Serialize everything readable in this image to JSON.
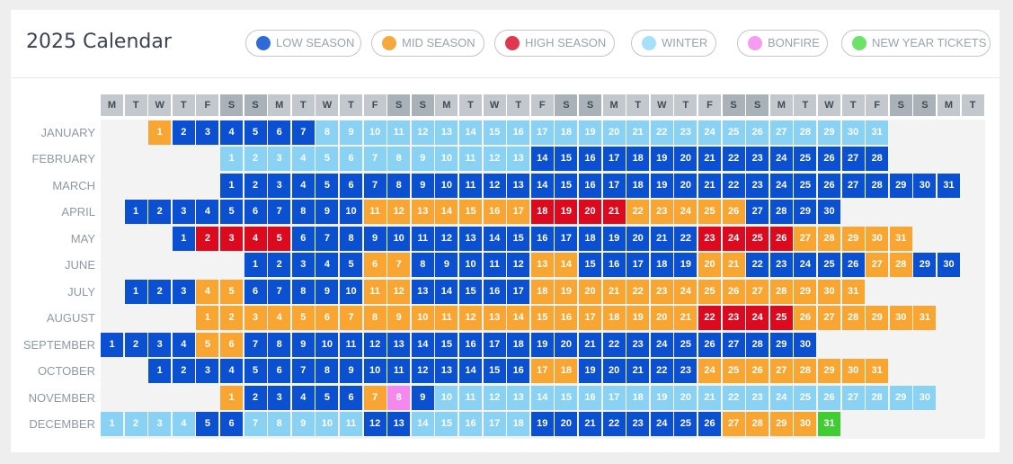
{
  "title": "2025 Calendar",
  "legend": [
    {
      "label": "LOW SEASON",
      "color": "#2e6bd8"
    },
    {
      "label": "MID SEASON",
      "color": "#f5a93d"
    },
    {
      "label": "HIGH SEASON",
      "color": "#e0394f"
    },
    {
      "label": "WINTER",
      "color": "#a8e0fb"
    },
    {
      "label": "BONFIRE",
      "color": "#f59cf0"
    },
    {
      "label": "NEW YEAR TICKETS",
      "color": "#6ce266"
    }
  ],
  "season_colors": {
    "low": {
      "bg": "#0b50d1",
      "fg": "#ffffff"
    },
    "mid": {
      "bg": "#f9a531",
      "fg": "#ffffff"
    },
    "high": {
      "bg": "#dc0a1f",
      "fg": "#ffffff"
    },
    "winter": {
      "bg": "#8ad2f4",
      "fg": "#ffffff"
    },
    "bonfire": {
      "bg": "#f488ec",
      "fg": "#ffffff"
    },
    "newyear": {
      "bg": "#42cc34",
      "fg": "#ffffff"
    }
  },
  "weekdays": [
    "M",
    "T",
    "W",
    "T",
    "F",
    "S",
    "S",
    "M",
    "T",
    "W",
    "T",
    "F",
    "S",
    "S",
    "M",
    "T",
    "W",
    "T",
    "F",
    "S",
    "S",
    "M",
    "T",
    "W",
    "T",
    "F",
    "S",
    "S",
    "M",
    "T",
    "W",
    "T",
    "F",
    "S",
    "S",
    "M",
    "T"
  ],
  "months": [
    {
      "name": "JANUARY",
      "offset": 2,
      "days": 31,
      "seasons": [
        [
          1,
          1,
          "mid"
        ],
        [
          2,
          7,
          "low"
        ],
        [
          8,
          31,
          "winter"
        ]
      ]
    },
    {
      "name": "FEBRUARY",
      "offset": 5,
      "days": 28,
      "seasons": [
        [
          1,
          13,
          "winter"
        ],
        [
          14,
          28,
          "low"
        ]
      ]
    },
    {
      "name": "MARCH",
      "offset": 5,
      "days": 31,
      "seasons": [
        [
          1,
          31,
          "low"
        ]
      ]
    },
    {
      "name": "APRIL",
      "offset": 1,
      "days": 30,
      "seasons": [
        [
          1,
          10,
          "low"
        ],
        [
          11,
          17,
          "mid"
        ],
        [
          18,
          21,
          "high"
        ],
        [
          22,
          26,
          "mid"
        ],
        [
          27,
          30,
          "low"
        ]
      ]
    },
    {
      "name": "MAY",
      "offset": 3,
      "days": 31,
      "seasons": [
        [
          1,
          1,
          "low"
        ],
        [
          2,
          5,
          "high"
        ],
        [
          6,
          22,
          "low"
        ],
        [
          23,
          26,
          "high"
        ],
        [
          27,
          31,
          "mid"
        ]
      ]
    },
    {
      "name": "JUNE",
      "offset": 6,
      "days": 30,
      "seasons": [
        [
          1,
          5,
          "low"
        ],
        [
          6,
          7,
          "mid"
        ],
        [
          8,
          12,
          "low"
        ],
        [
          13,
          14,
          "mid"
        ],
        [
          15,
          19,
          "low"
        ],
        [
          20,
          21,
          "mid"
        ],
        [
          22,
          26,
          "low"
        ],
        [
          27,
          28,
          "mid"
        ],
        [
          29,
          30,
          "low"
        ]
      ]
    },
    {
      "name": "JULY",
      "offset": 1,
      "days": 31,
      "seasons": [
        [
          1,
          3,
          "low"
        ],
        [
          4,
          5,
          "mid"
        ],
        [
          6,
          10,
          "low"
        ],
        [
          11,
          12,
          "mid"
        ],
        [
          13,
          17,
          "low"
        ],
        [
          18,
          31,
          "mid"
        ]
      ]
    },
    {
      "name": "AUGUST",
      "offset": 4,
      "days": 31,
      "seasons": [
        [
          1,
          21,
          "mid"
        ],
        [
          22,
          25,
          "high"
        ],
        [
          26,
          31,
          "mid"
        ]
      ]
    },
    {
      "name": "SEPTEMBER",
      "offset": 0,
      "days": 30,
      "seasons": [
        [
          1,
          4,
          "low"
        ],
        [
          5,
          6,
          "mid"
        ],
        [
          7,
          30,
          "low"
        ]
      ]
    },
    {
      "name": "OCTOBER",
      "offset": 2,
      "days": 31,
      "seasons": [
        [
          1,
          16,
          "low"
        ],
        [
          17,
          18,
          "mid"
        ],
        [
          19,
          23,
          "low"
        ],
        [
          24,
          31,
          "mid"
        ]
      ]
    },
    {
      "name": "NOVEMBER",
      "offset": 5,
      "days": 30,
      "seasons": [
        [
          1,
          1,
          "mid"
        ],
        [
          2,
          6,
          "low"
        ],
        [
          7,
          7,
          "mid"
        ],
        [
          8,
          8,
          "bonfire"
        ],
        [
          9,
          9,
          "low"
        ],
        [
          10,
          30,
          "winter"
        ]
      ]
    },
    {
      "name": "DECEMBER",
      "offset": 0,
      "days": 31,
      "seasons": [
        [
          1,
          4,
          "winter"
        ],
        [
          5,
          6,
          "low"
        ],
        [
          7,
          11,
          "winter"
        ],
        [
          12,
          13,
          "low"
        ],
        [
          14,
          18,
          "winter"
        ],
        [
          19,
          26,
          "low"
        ],
        [
          27,
          30,
          "mid"
        ],
        [
          31,
          31,
          "newyear"
        ]
      ]
    }
  ]
}
